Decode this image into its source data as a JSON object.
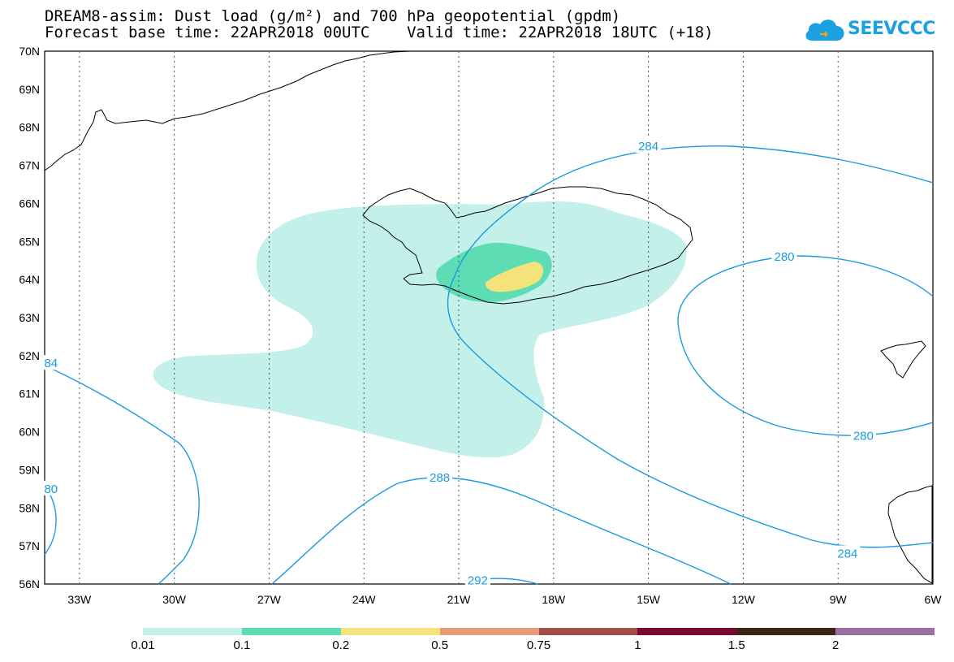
{
  "title": {
    "line1": "DREAM8-assim: Dust load (g/m²) and 700 hPa geopotential (gpdm)",
    "line2": "Forecast base time: 22APR2018 00UTC    Valid time: 22APR2018 18UTC (+18)"
  },
  "logo": {
    "text": "SEEVCCC",
    "icon": "cloud-icon",
    "color": "#1ba0e2"
  },
  "axes": {
    "lat_labels": [
      "70N",
      "69N",
      "68N",
      "67N",
      "66N",
      "65N",
      "64N",
      "63N",
      "62N",
      "61N",
      "60N",
      "59N",
      "58N",
      "57N",
      "56N"
    ],
    "lon_labels": [
      "33W",
      "30W",
      "27W",
      "24W",
      "21W",
      "18W",
      "15W",
      "12W",
      "9W",
      "6W"
    ],
    "lat_range": [
      56,
      70
    ],
    "lon_range": [
      -34.1,
      -6
    ],
    "grid": "dotted"
  },
  "contours": {
    "color": "#1a9be0",
    "labels": [
      {
        "text": "284",
        "lon": -15.0,
        "lat": 67.5
      },
      {
        "text": "280",
        "lon": -10.7,
        "lat": 64.6
      },
      {
        "text": "280",
        "lon": -8.2,
        "lat": 59.9
      },
      {
        "text": "288",
        "lon": -21.6,
        "lat": 58.8
      },
      {
        "text": "292",
        "lon": -20.4,
        "lat": 56.1
      },
      {
        "text": "284",
        "lon": -8.7,
        "lat": 56.8
      },
      {
        "text": "84",
        "lon": -33.9,
        "lat": 61.8
      },
      {
        "text": "80",
        "lon": -33.9,
        "lat": 58.5
      }
    ]
  },
  "legend": {
    "labels": [
      "0.01",
      "0.1",
      "0.2",
      "0.5",
      "0.75",
      "1",
      "1.5",
      "2"
    ],
    "colors": [
      "#c4f0ea",
      "#5edcb4",
      "#f4e37a",
      "#e69a7a",
      "#a74d49",
      "#7a0a30",
      "#3a2612",
      "#9a6fa0"
    ]
  }
}
